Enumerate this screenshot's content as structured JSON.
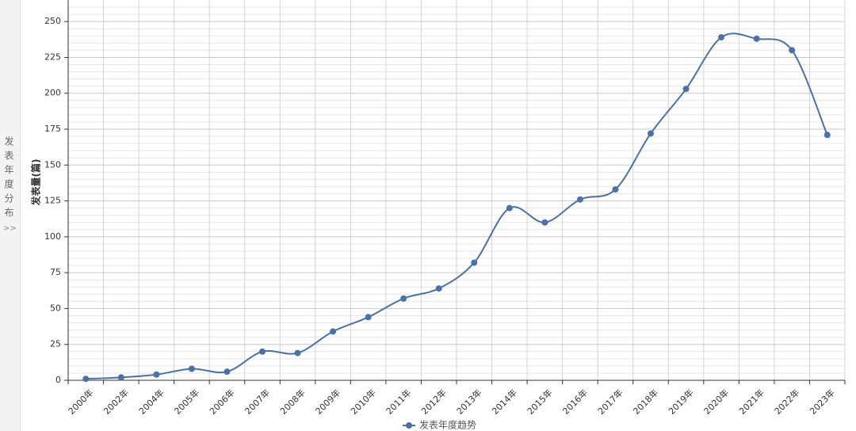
{
  "side_panel": {
    "label": "发表年度分布",
    "toggle": ">>"
  },
  "chart_data": {
    "type": "line",
    "y_label": "发表量(篇)",
    "categories": [
      "2000年",
      "2002年",
      "2004年",
      "2005年",
      "2006年",
      "2007年",
      "2008年",
      "2009年",
      "2010年",
      "2011年",
      "2012年",
      "2013年",
      "2014年",
      "2015年",
      "2016年",
      "2017年",
      "2018年",
      "2019年",
      "2020年",
      "2021年",
      "2022年",
      "2023年"
    ],
    "series": [
      {
        "name": "发表年度趋势",
        "color": "#4a72a8",
        "values": [
          1,
          2,
          4,
          8,
          6,
          20,
          19,
          34,
          44,
          57,
          64,
          82,
          120,
          110,
          126,
          133,
          172,
          203,
          239,
          238,
          230,
          171
        ]
      }
    ],
    "ylim": [
      0,
      265
    ],
    "yticks": [
      0,
      25,
      50,
      75,
      100,
      125,
      150,
      175,
      200,
      225,
      250
    ],
    "grid": true,
    "smooth": true,
    "legend": "bottom"
  }
}
